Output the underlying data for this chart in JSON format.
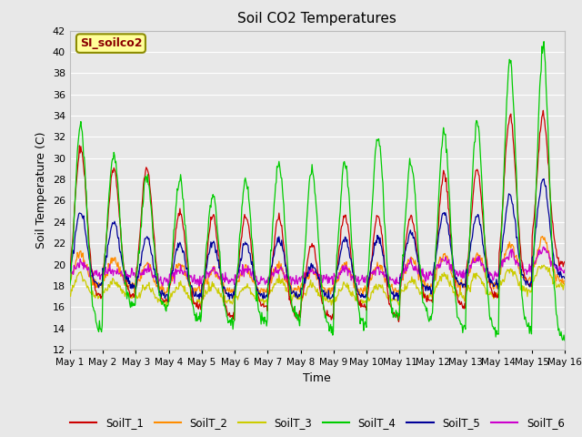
{
  "title": "Soil CO2 Temperatures",
  "xlabel": "Time",
  "ylabel": "Soil Temperature (C)",
  "ylim": [
    12,
    42
  ],
  "yticks": [
    12,
    14,
    16,
    18,
    20,
    22,
    24,
    26,
    28,
    30,
    32,
    34,
    36,
    38,
    40,
    42
  ],
  "annotation_text": "SI_soilco2",
  "annotation_color": "#8B0000",
  "annotation_bg": "#FFFF99",
  "annotation_border": "#8B8B00",
  "series_colors": {
    "SoilT_1": "#CC0000",
    "SoilT_2": "#FF8C00",
    "SoilT_3": "#CCCC00",
    "SoilT_4": "#00CC00",
    "SoilT_5": "#000099",
    "SoilT_6": "#CC00CC"
  },
  "fig_bg": "#E8E8E8",
  "plot_bg": "#E8E8E8",
  "grid_color": "#FFFFFF",
  "n_days": 15,
  "points_per_day": 48
}
